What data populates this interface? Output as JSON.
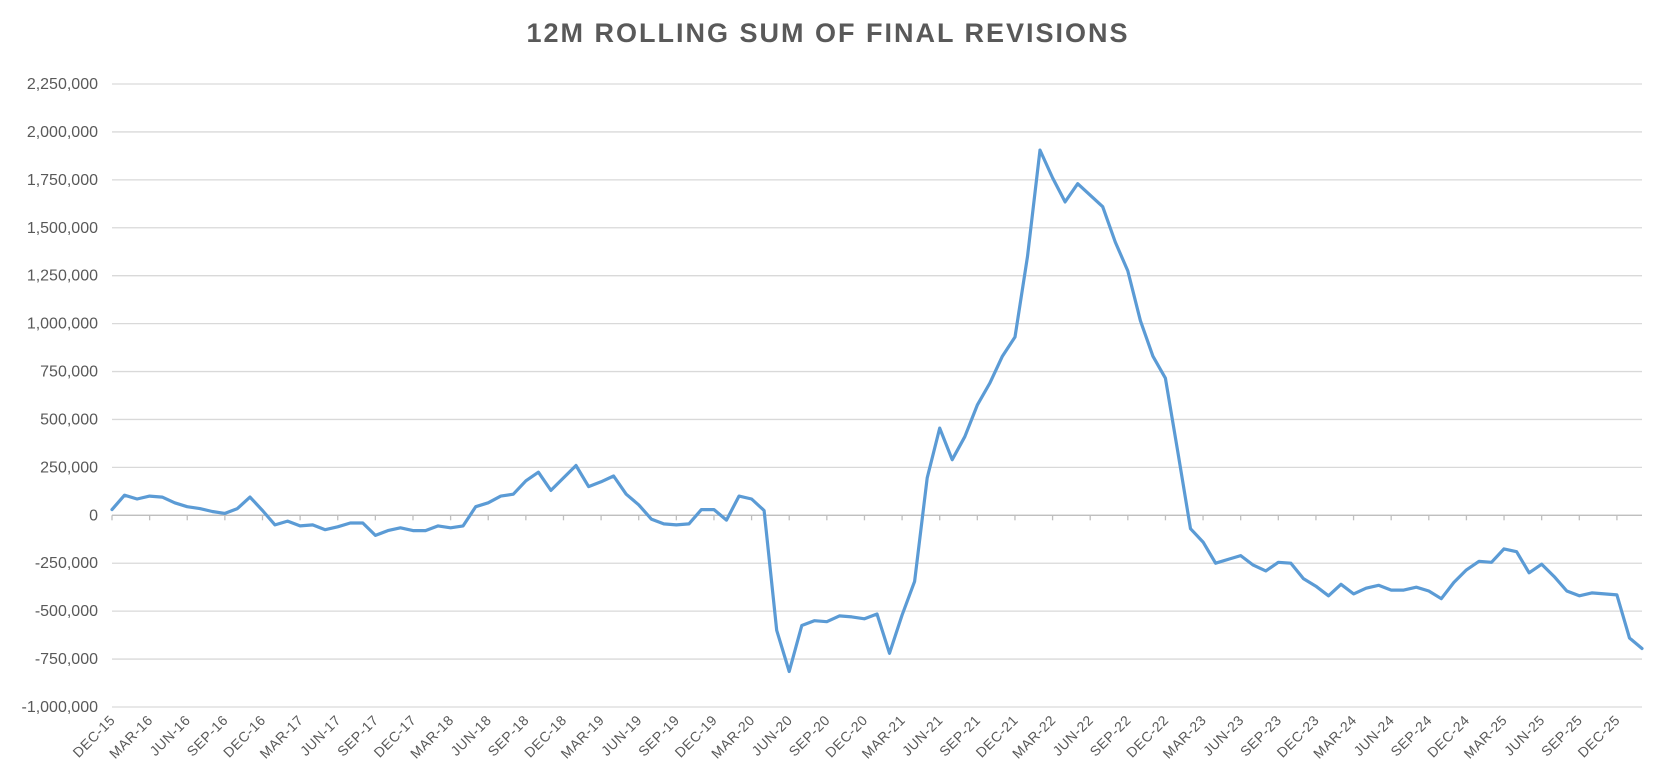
{
  "chart_data": {
    "type": "line",
    "title": "12M ROLLING SUM OF FINAL REVISIONS",
    "xlabel": "",
    "ylabel": "",
    "ylim": [
      -1000000,
      2250000
    ],
    "yticks": [
      2250000,
      2000000,
      1750000,
      1500000,
      1250000,
      1000000,
      750000,
      500000,
      250000,
      0,
      -250000,
      -500000,
      -750000,
      -1000000
    ],
    "ytick_labels": [
      "2,250,000",
      "2,000,000",
      "1,750,000",
      "1,500,000",
      "1,250,000",
      "1,000,000",
      "750,000",
      "500,000",
      "250,000",
      "0",
      "-250,000",
      "-500,000",
      "-750,000",
      "-1,000,000"
    ],
    "xtick_labels": [
      "DEC-15",
      "MAR-16",
      "JUN-16",
      "SEP-16",
      "DEC-16",
      "MAR-17",
      "JUN-17",
      "SEP-17",
      "DEC-17",
      "MAR-18",
      "JUN-18",
      "SEP-18",
      "DEC-18",
      "MAR-19",
      "JUN-19",
      "SEP-19",
      "DEC-19",
      "MAR-20",
      "JUN-20",
      "SEP-20",
      "DEC-20",
      "MAR-21",
      "JUN-21",
      "SEP-21",
      "DEC-21",
      "MAR-22",
      "JUN-22",
      "SEP-22",
      "DEC-22",
      "MAR-23",
      "JUN-23",
      "SEP-23",
      "DEC-23",
      "MAR-24",
      "JUN-24",
      "SEP-24",
      "DEC-24",
      "MAR-25",
      "JUN-25",
      "SEP-25",
      "DEC-25"
    ],
    "grid": true,
    "colors": {
      "line": "#5B9BD5",
      "grid": "#D9D9D9",
      "text": "#595959"
    },
    "series": [
      {
        "values": [
          30000,
          105000,
          85000,
          100000,
          95000,
          65000,
          45000,
          35000,
          20000,
          10000,
          35000,
          95000,
          25000,
          -50000,
          -30000,
          -55000,
          -50000,
          -75000,
          -60000,
          -40000,
          -40000,
          -105000,
          -80000,
          -65000,
          -80000,
          -80000,
          -55000,
          -65000,
          -55000,
          45000,
          65000,
          100000,
          110000,
          180000,
          225000,
          130000,
          195000,
          260000,
          150000,
          175000,
          205000,
          110000,
          55000,
          -20000,
          -45000,
          -50000,
          -45000,
          30000,
          30000,
          -25000,
          100000,
          85000,
          25000,
          -600000,
          -815000,
          -575000,
          -550000,
          -555000,
          -525000,
          -530000,
          -540000,
          -515000,
          -720000,
          -520000,
          -345000,
          195000,
          455000,
          290000,
          410000,
          575000,
          690000,
          830000,
          930000,
          1350000,
          1905000,
          1760000,
          1635000,
          1730000,
          1670000,
          1610000,
          1425000,
          1275000,
          1015000,
          830000,
          715000,
          325000,
          -70000,
          -140000,
          -250000,
          -230000,
          -210000,
          -260000,
          -290000,
          -245000,
          -250000,
          -330000,
          -370000,
          -420000,
          -360000,
          -410000,
          -380000,
          -365000,
          -390000,
          -390000,
          -375000,
          -395000,
          -435000,
          -350000,
          -285000,
          -240000,
          -245000,
          -175000,
          -190000,
          -300000,
          -255000,
          -320000,
          -395000,
          -420000,
          -405000,
          -410000,
          -415000,
          -640000,
          -695000
        ]
      }
    ]
  }
}
